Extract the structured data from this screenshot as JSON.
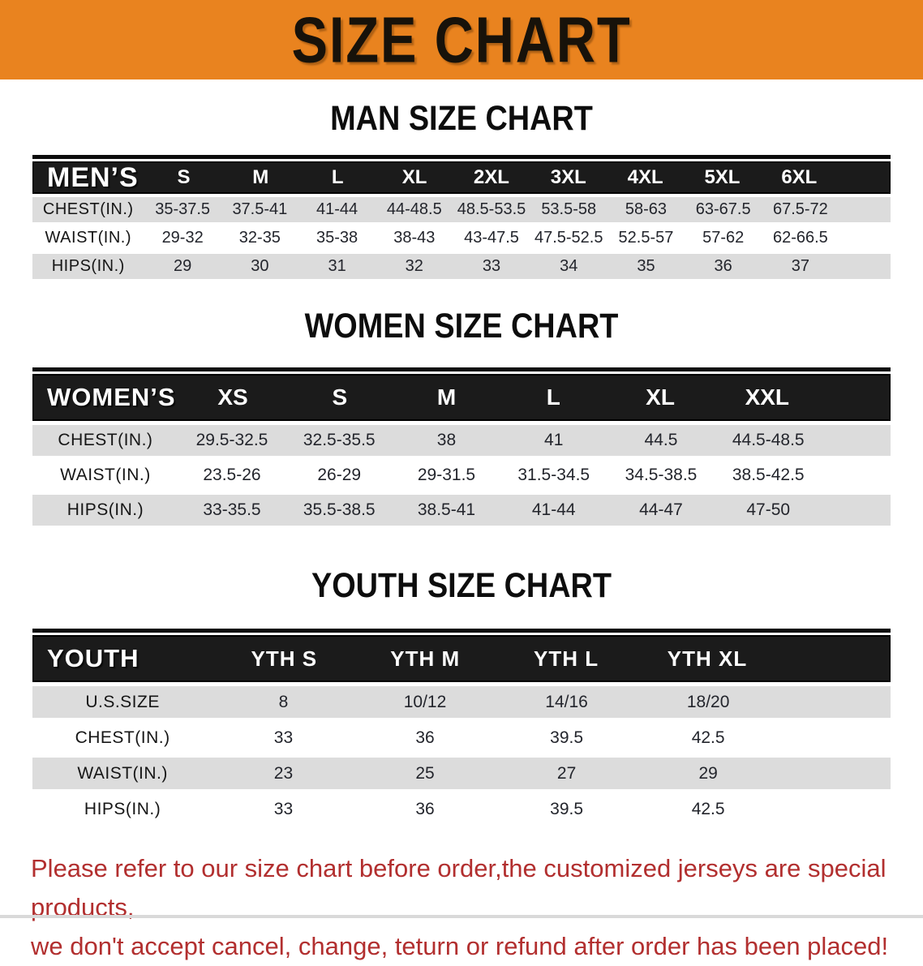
{
  "banner": {
    "title": "SIZE CHART",
    "bg_color": "#e9831f"
  },
  "sections": [
    {
      "heading": "MAN SIZE CHART",
      "table": {
        "label": "MEN’S",
        "columns": [
          "S",
          "M",
          "L",
          "XL",
          "2XL",
          "3XL",
          "4XL",
          "5XL",
          "6XL"
        ],
        "rows": [
          {
            "label": "CHEST(IN.)",
            "values": [
              "35-37.5",
              "37.5-41",
              "41-44",
              "44-48.5",
              "48.5-53.5",
              "53.5-58",
              "58-63",
              "63-67.5",
              "67.5-72"
            ]
          },
          {
            "label": "WAIST(IN.)",
            "values": [
              "29-32",
              "32-35",
              "35-38",
              "38-43",
              "43-47.5",
              "47.5-52.5",
              "52.5-57",
              "57-62",
              "62-66.5"
            ]
          },
          {
            "label": "HIPS(IN.)",
            "values": [
              "29",
              "30",
              "31",
              "32",
              "33",
              "34",
              "35",
              "36",
              "37"
            ]
          }
        ]
      }
    },
    {
      "heading": "WOMEN SIZE CHART",
      "table": {
        "label": "WOMEN’S",
        "columns": [
          "XS",
          "S",
          "M",
          "L",
          "XL",
          "XXL"
        ],
        "rows": [
          {
            "label": "CHEST(IN.)",
            "values": [
              "29.5-32.5",
              "32.5-35.5",
              "38",
              "41",
              "44.5",
              "44.5-48.5"
            ]
          },
          {
            "label": "WAIST(IN.)",
            "values": [
              "23.5-26",
              "26-29",
              "29-31.5",
              "31.5-34.5",
              "34.5-38.5",
              "38.5-42.5"
            ]
          },
          {
            "label": "HIPS(IN.)",
            "values": [
              "33-35.5",
              "35.5-38.5",
              "38.5-41",
              "41-44",
              "44-47",
              "47-50"
            ]
          }
        ]
      }
    },
    {
      "heading": "YOUTH SIZE CHART",
      "table": {
        "label": "YOUTH",
        "columns": [
          "YTH S",
          "YTH M",
          "YTH L",
          "YTH XL"
        ],
        "rows": [
          {
            "label": "U.S.SIZE",
            "values": [
              "8",
              "10/12",
              "14/16",
              "18/20"
            ]
          },
          {
            "label": "CHEST(IN.)",
            "values": [
              "33",
              "36",
              "39.5",
              "42.5"
            ]
          },
          {
            "label": "WAIST(IN.)",
            "values": [
              "23",
              "25",
              "27",
              "29"
            ]
          },
          {
            "label": "HIPS(IN.)",
            "values": [
              "33",
              "36",
              "39.5",
              "42.5"
            ]
          }
        ]
      }
    }
  ],
  "footer": {
    "line1": "Please refer to our size chart before order,the customized jerseys are special products,",
    "line2": "we don't accept cancel, change, teturn or refund after order has been placed!",
    "color": "#b22f2f"
  }
}
